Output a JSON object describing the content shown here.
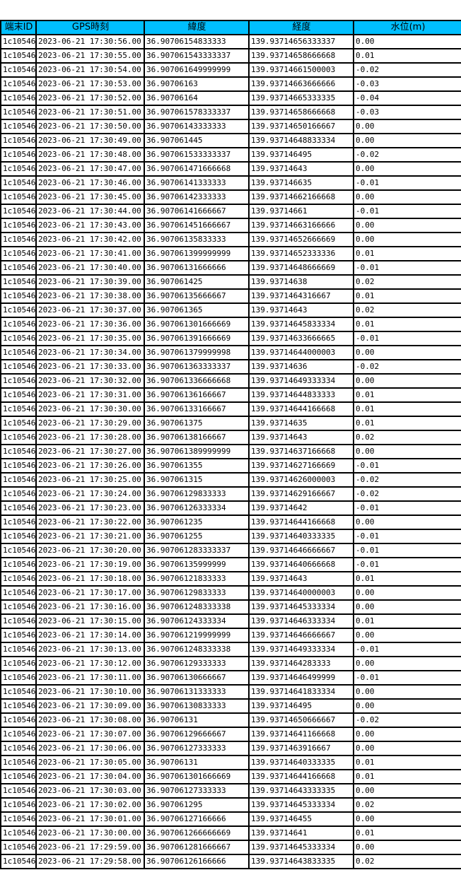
{
  "colors": {
    "header_bg": "#00BFFF",
    "border": "#000000",
    "row_bg": "#FFFFFF",
    "text": "#000000"
  },
  "table": {
    "columns": [
      "端末ID",
      "GPS時刻",
      "緯度",
      "経度",
      "水位(m)"
    ],
    "column_names": [
      "column-header-terminal-id",
      "column-header-gps-time",
      "column-header-latitude",
      "column-header-longitude",
      "column-header-water-level"
    ],
    "cell_names": [
      "cell-terminal-id",
      "cell-gps-time",
      "cell-latitude",
      "cell-longitude",
      "cell-water-level"
    ],
    "rows": [
      [
        "1c10546",
        "2023-06-21 17:30:56.00",
        "36.90706154833333",
        "139.93714656333337",
        "0.00"
      ],
      [
        "1c10546",
        "2023-06-21 17:30:55.00",
        "36.907061543333337",
        "139.93714658666668",
        "0.01"
      ],
      [
        "1c10546",
        "2023-06-21 17:30:54.00",
        "36.907061649999999",
        "139.93714661500003",
        "-0.02"
      ],
      [
        "1c10546",
        "2023-06-21 17:30:53.00",
        "36.90706163",
        "139.93714663666666",
        "-0.03"
      ],
      [
        "1c10546",
        "2023-06-21 17:30:52.00",
        "36.90706164",
        "139.93714665333335",
        "-0.04"
      ],
      [
        "1c10546",
        "2023-06-21 17:30:51.00",
        "36.907061578333337",
        "139.93714658666668",
        "-0.03"
      ],
      [
        "1c10546",
        "2023-06-21 17:30:50.00",
        "36.90706143333333",
        "139.93714650166667",
        "0.00"
      ],
      [
        "1c10546",
        "2023-06-21 17:30:49.00",
        "36.907061445",
        "139.93714648833334",
        "0.00"
      ],
      [
        "1c10546",
        "2023-06-21 17:30:48.00",
        "36.907061533333337",
        "139.937146495",
        "-0.02"
      ],
      [
        "1c10546",
        "2023-06-21 17:30:47.00",
        "36.907061471666668",
        "139.93714643",
        "0.00"
      ],
      [
        "1c10546",
        "2023-06-21 17:30:46.00",
        "36.90706141333333",
        "139.937146635",
        "-0.01"
      ],
      [
        "1c10546",
        "2023-06-21 17:30:45.00",
        "36.90706142333333",
        "139.93714662166668",
        "0.00"
      ],
      [
        "1c10546",
        "2023-06-21 17:30:44.00",
        "36.90706141666667",
        "139.93714661",
        "-0.01"
      ],
      [
        "1c10546",
        "2023-06-21 17:30:43.00",
        "36.907061451666667",
        "139.93714663166666",
        "0.00"
      ],
      [
        "1c10546",
        "2023-06-21 17:30:42.00",
        "36.90706135833333",
        "139.93714652666669",
        "0.00"
      ],
      [
        "1c10546",
        "2023-06-21 17:30:41.00",
        "36.907061399999999",
        "139.93714652333336",
        "0.01"
      ],
      [
        "1c10546",
        "2023-06-21 17:30:40.00",
        "36.90706131666666",
        "139.93714648666669",
        "-0.01"
      ],
      [
        "1c10546",
        "2023-06-21 17:30:39.00",
        "36.907061425",
        "139.93714638",
        "0.02"
      ],
      [
        "1c10546",
        "2023-06-21 17:30:38.00",
        "36.90706135666667",
        "139.9371464316667",
        "0.01"
      ],
      [
        "1c10546",
        "2023-06-21 17:30:37.00",
        "36.907061365",
        "139.93714643",
        "0.02"
      ],
      [
        "1c10546",
        "2023-06-21 17:30:36.00",
        "36.907061301666669",
        "139.93714645833334",
        "0.01"
      ],
      [
        "1c10546",
        "2023-06-21 17:30:35.00",
        "36.907061391666669",
        "139.93714633666665",
        "-0.01"
      ],
      [
        "1c10546",
        "2023-06-21 17:30:34.00",
        "36.907061379999998",
        "139.93714644000003",
        "0.00"
      ],
      [
        "1c10546",
        "2023-06-21 17:30:33.00",
        "36.907061363333337",
        "139.93714636",
        "-0.02"
      ],
      [
        "1c10546",
        "2023-06-21 17:30:32.00",
        "36.907061336666668",
        "139.93714649333334",
        "0.00"
      ],
      [
        "1c10546",
        "2023-06-21 17:30:31.00",
        "36.90706136166667",
        "139.93714644833333",
        "0.01"
      ],
      [
        "1c10546",
        "2023-06-21 17:30:30.00",
        "36.90706133166667",
        "139.93714644166668",
        "0.01"
      ],
      [
        "1c10546",
        "2023-06-21 17:30:29.00",
        "36.907061375",
        "139.93714635",
        "0.01"
      ],
      [
        "1c10546",
        "2023-06-21 17:30:28.00",
        "36.90706138166667",
        "139.93714643",
        "0.02"
      ],
      [
        "1c10546",
        "2023-06-21 17:30:27.00",
        "36.907061389999999",
        "139.93714637166668",
        "0.00"
      ],
      [
        "1c10546",
        "2023-06-21 17:30:26.00",
        "36.907061355",
        "139.93714627166669",
        "-0.01"
      ],
      [
        "1c10546",
        "2023-06-21 17:30:25.00",
        "36.907061315",
        "139.93714626000003",
        "-0.02"
      ],
      [
        "1c10546",
        "2023-06-21 17:30:24.00",
        "36.90706129833333",
        "139.93714629166667",
        "-0.02"
      ],
      [
        "1c10546",
        "2023-06-21 17:30:23.00",
        "36.90706126333334",
        "139.93714642",
        "-0.01"
      ],
      [
        "1c10546",
        "2023-06-21 17:30:22.00",
        "36.907061235",
        "139.93714644166668",
        "0.00"
      ],
      [
        "1c10546",
        "2023-06-21 17:30:21.00",
        "36.907061255",
        "139.93714640333335",
        "-0.01"
      ],
      [
        "1c10546",
        "2023-06-21 17:30:20.00",
        "36.907061283333337",
        "139.93714646666667",
        "-0.01"
      ],
      [
        "1c10546",
        "2023-06-21 17:30:19.00",
        "36.90706135999999",
        "139.93714640666668",
        "-0.01"
      ],
      [
        "1c10546",
        "2023-06-21 17:30:18.00",
        "36.90706121833333",
        "139.93714643",
        "0.01"
      ],
      [
        "1c10546",
        "2023-06-21 17:30:17.00",
        "36.90706129833333",
        "139.93714640000003",
        "0.00"
      ],
      [
        "1c10546",
        "2023-06-21 17:30:16.00",
        "36.907061248333338",
        "139.93714645333334",
        "0.00"
      ],
      [
        "1c10546",
        "2023-06-21 17:30:15.00",
        "36.90706124333334",
        "139.93714646333334",
        "0.01"
      ],
      [
        "1c10546",
        "2023-06-21 17:30:14.00",
        "36.907061219999999",
        "139.93714646666667",
        "0.00"
      ],
      [
        "1c10546",
        "2023-06-21 17:30:13.00",
        "36.907061248333338",
        "139.93714649333334",
        "-0.01"
      ],
      [
        "1c10546",
        "2023-06-21 17:30:12.00",
        "36.90706129333333",
        "139.9371464283333",
        "0.00"
      ],
      [
        "1c10546",
        "2023-06-21 17:30:11.00",
        "36.90706130666667",
        "139.93714646499999",
        "-0.01"
      ],
      [
        "1c10546",
        "2023-06-21 17:30:10.00",
        "36.90706131333333",
        "139.93714641833334",
        "0.00"
      ],
      [
        "1c10546",
        "2023-06-21 17:30:09.00",
        "36.90706130833333",
        "139.937146495",
        "0.00"
      ],
      [
        "1c10546",
        "2023-06-21 17:30:08.00",
        "36.90706131",
        "139.93714650666667",
        "-0.02"
      ],
      [
        "1c10546",
        "2023-06-21 17:30:07.00",
        "36.90706129666667",
        "139.93714641166668",
        "0.00"
      ],
      [
        "1c10546",
        "2023-06-21 17:30:06.00",
        "36.90706127333333",
        "139.9371463916667",
        "0.00"
      ],
      [
        "1c10546",
        "2023-06-21 17:30:05.00",
        "36.90706131",
        "139.93714640333335",
        "0.01"
      ],
      [
        "1c10546",
        "2023-06-21 17:30:04.00",
        "36.907061301666669",
        "139.93714644166668",
        "0.01"
      ],
      [
        "1c10546",
        "2023-06-21 17:30:03.00",
        "36.90706127333333",
        "139.93714643333335",
        "0.00"
      ],
      [
        "1c10546",
        "2023-06-21 17:30:02.00",
        "36.907061295",
        "139.93714645333334",
        "0.02"
      ],
      [
        "1c10546",
        "2023-06-21 17:30:01.00",
        "36.90706127166666",
        "139.937146455",
        "0.00"
      ],
      [
        "1c10546",
        "2023-06-21 17:30:00.00",
        "36.907061266666669",
        "139.93714641",
        "0.01"
      ],
      [
        "1c10546",
        "2023-06-21 17:29:59.00",
        "36.907061281666667",
        "139.93714645333334",
        "0.00"
      ],
      [
        "1c10546",
        "2023-06-21 17:29:58.00",
        "36.90706126166666",
        "139.93714643833335",
        "0.02"
      ]
    ]
  }
}
